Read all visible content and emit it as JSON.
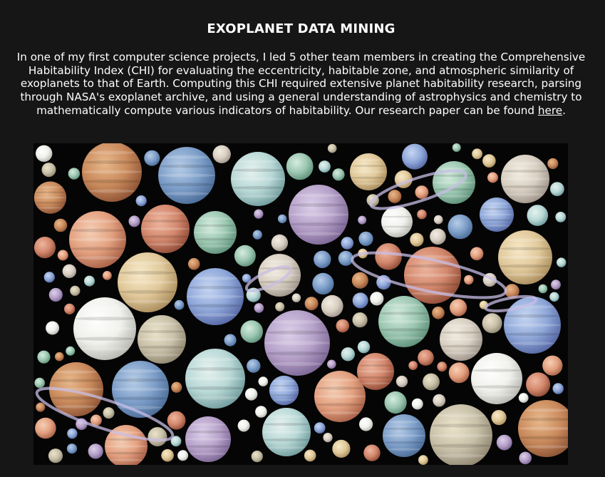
{
  "project": {
    "title": "EXOPLANET DATA MINING",
    "description_before_link": "In one of my first computer science projects, I led 5 other team members in creating the Comprehensive Habitability Index (CHI) for evaluating the eccentricity, habitable zone, and atmospheric similarity of exoplanets to that of Earth. Computing this CHI required extensive planet habitability research, parsing through NASA's exoplanet archive, and using a general understanding of astrophysics and chemistry to mathematically compute various indicators of habitability. Our research paper can be found ",
    "link_text": "here",
    "description_after_link": "."
  },
  "image": {
    "subject": "collage-of-exoplanets",
    "background_color": "#050505"
  },
  "colors": {
    "page_background": "#161616",
    "text": "#ffffff"
  }
}
